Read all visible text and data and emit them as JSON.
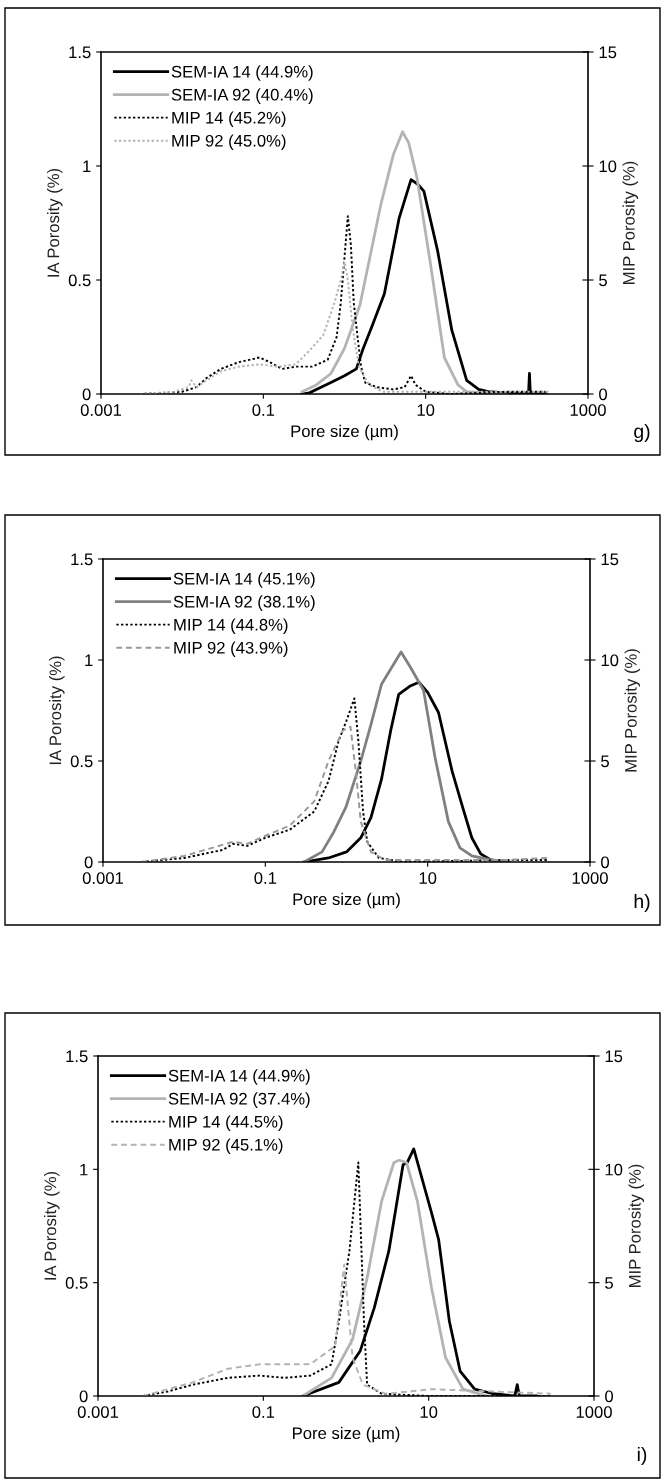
{
  "chart_data": [
    {
      "type": "line",
      "xlabel": "Pore size (µm)",
      "ylabel": "IA Porosity (%)",
      "y2label": "MIP Porosity (%)",
      "log": "x",
      "legend": "top left",
      "xlim": [
        0.001,
        1000
      ],
      "xticks": [
        0.001,
        0.1,
        10,
        1000
      ],
      "ylim": [
        0,
        1.5
      ],
      "yticks": [
        0,
        0.5,
        1,
        1.5
      ],
      "y2lim": [
        0,
        15
      ],
      "y2ticks": [
        0,
        5,
        10,
        15
      ],
      "annotations": [
        "g)"
      ],
      "series": [
        {
          "name": "SEM-IA 14 (44.9%)",
          "color": "#000000",
          "line_style": "solid",
          "x": [
            0.3,
            0.37,
            0.68,
            1.0,
            1.4,
            1.7,
            2.2,
            3.1,
            4.7,
            6.6,
            8.0,
            9.5,
            14,
            21,
            32,
            45,
            59,
            100,
            185,
            190,
            195,
            300
          ],
          "values": [
            0,
            0.005,
            0.05,
            0.08,
            0.11,
            0.2,
            0.3,
            0.44,
            0.77,
            0.94,
            0.92,
            0.89,
            0.63,
            0.28,
            0.06,
            0.02,
            0.01,
            0.005,
            0,
            0.09,
            0,
            0
          ]
        },
        {
          "name": "SEM-IA 92 (40.4%)",
          "color": "#b3b3b3",
          "line_style": "solid",
          "x": [
            0.3,
            0.45,
            0.68,
            1.0,
            1.55,
            2.8,
            4.0,
            5.2,
            6.2,
            7.8,
            11.7,
            17,
            25,
            32,
            50,
            100
          ],
          "values": [
            0.01,
            0.04,
            0.09,
            0.2,
            0.39,
            0.83,
            1.05,
            1.15,
            1.1,
            0.95,
            0.55,
            0.16,
            0.04,
            0.01,
            0.005,
            0
          ]
        },
        {
          "name": "MIP 14 (45.2%)",
          "color": "#000000",
          "line_style": "dotted",
          "axis": "y2",
          "x": [
            0.003,
            0.006,
            0.01,
            0.015,
            0.02,
            0.03,
            0.05,
            0.09,
            0.12,
            0.17,
            0.25,
            0.4,
            0.62,
            0.8,
            0.9,
            1.0,
            1.1,
            1.2,
            1.3,
            1.45,
            1.6,
            1.8,
            2.5,
            4,
            5.5,
            6.6,
            7.5,
            10,
            20,
            100,
            300
          ],
          "values": [
            0,
            0.05,
            0.1,
            0.3,
            0.7,
            1.1,
            1.4,
            1.6,
            1.4,
            1.1,
            1.2,
            1.2,
            1.5,
            2.5,
            4.0,
            6.0,
            7.8,
            6.5,
            4.0,
            2.5,
            1.2,
            0.5,
            0.3,
            0.2,
            0.3,
            0.8,
            0.4,
            0.1,
            0,
            0.1,
            0.1
          ]
        },
        {
          "name": "MIP 92 (45.0%)",
          "color": "#b3b3b3",
          "line_style": "dotted",
          "axis": "y2",
          "x": [
            0.003,
            0.008,
            0.012,
            0.013,
            0.015,
            0.02,
            0.03,
            0.05,
            0.09,
            0.15,
            0.25,
            0.37,
            0.55,
            0.75,
            0.9,
            1.0,
            1.1,
            1.25,
            1.5,
            2,
            3,
            10,
            50,
            330
          ],
          "values": [
            0,
            0.1,
            0.3,
            0.6,
            0.3,
            0.6,
            1.0,
            1.2,
            1.3,
            1.2,
            1.3,
            1.9,
            2.6,
            4.0,
            5.0,
            5.8,
            5.0,
            3.0,
            1.2,
            0.4,
            0.1,
            0.1,
            0.1,
            0.1
          ]
        }
      ]
    },
    {
      "type": "line",
      "xlabel": "Pore size (µm)",
      "ylabel": "IA Porosity (%)",
      "y2label": "MIP Porosity (%)",
      "log": "x",
      "legend": "top left",
      "xlim": [
        0.001,
        1000
      ],
      "xticks": [
        0.001,
        0.1,
        10,
        1000
      ],
      "ylim": [
        0,
        1.5
      ],
      "yticks": [
        0,
        0.5,
        1,
        1.5
      ],
      "y2lim": [
        0,
        15
      ],
      "y2ticks": [
        0,
        5,
        10,
        15
      ],
      "annotations": [
        "h)"
      ],
      "series": [
        {
          "name": "SEM-IA 14 (45.1%)",
          "color": "#000000",
          "line_style": "solid",
          "x": [
            0.3,
            0.6,
            1.0,
            1.5,
            2.0,
            2.7,
            3.5,
            4.4,
            6.0,
            7.8,
            10,
            13.6,
            20,
            27,
            35,
            45,
            60,
            100
          ],
          "values": [
            0,
            0.02,
            0.05,
            0.12,
            0.22,
            0.41,
            0.65,
            0.83,
            0.87,
            0.89,
            0.84,
            0.74,
            0.45,
            0.27,
            0.12,
            0.04,
            0.01,
            0
          ]
        },
        {
          "name": "SEM-IA 92 (38.1%)",
          "color": "#808080",
          "line_style": "solid",
          "x": [
            0.3,
            0.5,
            0.7,
            0.98,
            1.5,
            2.0,
            2.7,
            4.7,
            6.0,
            8.9,
            12.3,
            18,
            25,
            35,
            60,
            100
          ],
          "values": [
            0,
            0.05,
            0.15,
            0.27,
            0.5,
            0.68,
            0.88,
            1.04,
            0.97,
            0.85,
            0.52,
            0.2,
            0.07,
            0.03,
            0.01,
            0
          ]
        },
        {
          "name": "MIP 14 (44.8%)",
          "color": "#000000",
          "line_style": "dotted",
          "axis": "y2",
          "x": [
            0.003,
            0.01,
            0.03,
            0.04,
            0.06,
            0.1,
            0.2,
            0.4,
            0.6,
            0.8,
            1.0,
            1.25,
            1.4,
            1.6,
            1.8,
            2.5,
            5,
            100,
            300
          ],
          "values": [
            0,
            0.2,
            0.6,
            0.9,
            0.8,
            1.2,
            1.6,
            2.5,
            4.0,
            6.0,
            7.0,
            8.1,
            6.0,
            2.5,
            1.0,
            0.2,
            0,
            0.1,
            0.1
          ]
        },
        {
          "name": "MIP 92 (43.9%)",
          "color": "#999999",
          "line_style": "dashed",
          "axis": "y2",
          "x": [
            0.003,
            0.01,
            0.04,
            0.06,
            0.1,
            0.2,
            0.4,
            0.6,
            0.9,
            1.12,
            1.3,
            1.5,
            2,
            3,
            100,
            300
          ],
          "values": [
            0,
            0.3,
            1.0,
            0.9,
            1.3,
            1.8,
            3.0,
            5.0,
            6.5,
            6.7,
            4.5,
            2.0,
            0.5,
            0.1,
            0.1,
            0.2
          ]
        }
      ]
    },
    {
      "type": "line",
      "xlabel": "Pore size (µm)",
      "ylabel": "IA Porosity (%)",
      "y2label": "MIP Porosity (%)",
      "log": "x",
      "legend": "top left",
      "xlim": [
        0.001,
        1000
      ],
      "xticks": [
        0.001,
        0.1,
        10,
        1000
      ],
      "ylim": [
        0,
        1.5
      ],
      "yticks": [
        0,
        0.5,
        1,
        1.5
      ],
      "y2lim": [
        0,
        15
      ],
      "y2ticks": [
        0,
        5,
        10,
        15
      ],
      "annotations": [
        "i)"
      ],
      "series": [
        {
          "name": "SEM-IA 14 (44.9%)",
          "color": "#000000",
          "line_style": "solid",
          "x": [
            0.3,
            0.82,
            1.49,
            2.2,
            3.3,
            4.9,
            5.5,
            6.6,
            10.8,
            13.2,
            17.8,
            24,
            36,
            60,
            110,
            118,
            125,
            200
          ],
          "values": [
            0,
            0.06,
            0.2,
            0.39,
            0.64,
            1.02,
            1.03,
            1.09,
            0.81,
            0.69,
            0.33,
            0.11,
            0.03,
            0.01,
            0,
            0.05,
            0,
            0
          ]
        },
        {
          "name": "SEM-IA 92 (37.4%)",
          "color": "#b3b3b3",
          "line_style": "solid",
          "x": [
            0.3,
            0.67,
            1.2,
            1.8,
            2.7,
            3.8,
            4.4,
            5.4,
            7.3,
            10.8,
            16,
            26,
            50
          ],
          "values": [
            0,
            0.08,
            0.25,
            0.52,
            0.86,
            1.03,
            1.04,
            1.03,
            0.86,
            0.48,
            0.17,
            0.03,
            0
          ]
        },
        {
          "name": "MIP 14 (44.5%)",
          "color": "#000000",
          "line_style": "dotted",
          "axis": "y2",
          "x": [
            0.0035,
            0.007,
            0.014,
            0.037,
            0.09,
            0.18,
            0.37,
            0.67,
            0.82,
            1.1,
            1.41,
            1.65,
            1.8,
            2.7,
            10,
            300
          ],
          "values": [
            0,
            0.2,
            0.5,
            0.8,
            0.9,
            0.8,
            0.9,
            1.4,
            3.3,
            6.4,
            10.3,
            3.3,
            0.5,
            0.1,
            0,
            0
          ]
        },
        {
          "name": "MIP 92 (45.1%)",
          "color": "#b3b3b3",
          "line_style": "dashed",
          "axis": "y2",
          "x": [
            0.0035,
            0.014,
            0.037,
            0.09,
            0.37,
            0.74,
            0.95,
            1.2,
            1.6,
            3,
            11,
            300
          ],
          "values": [
            0,
            0.6,
            1.2,
            1.4,
            1.4,
            2.2,
            5.8,
            1.7,
            0.5,
            0.1,
            0.3,
            0.1
          ]
        }
      ]
    }
  ]
}
